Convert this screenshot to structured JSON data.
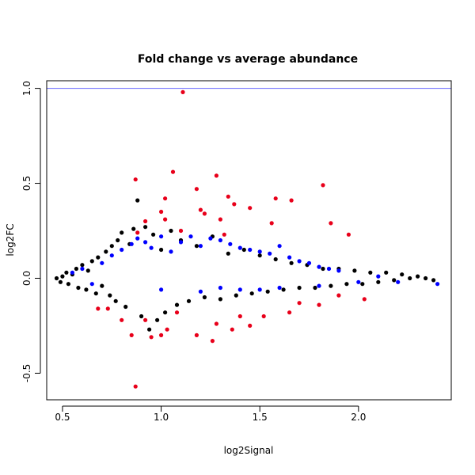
{
  "chart_data": {
    "type": "scatter",
    "title": "Fold change vs average abundance",
    "xlabel": "log2Signal",
    "ylabel": "log2FC",
    "xlim": [
      0.42,
      2.47
    ],
    "ylim": [
      -0.64,
      1.04
    ],
    "x_ticks": [
      {
        "value": 0.5,
        "label": "0.5"
      },
      {
        "value": 1.0,
        "label": "1.0"
      },
      {
        "value": 1.5,
        "label": "1.5"
      },
      {
        "value": 2.0,
        "label": "2.0"
      }
    ],
    "y_ticks": [
      {
        "value": -0.5,
        "label": "-0.5"
      },
      {
        "value": 0.0,
        "label": "0.0"
      },
      {
        "value": 0.5,
        "label": "0.5"
      },
      {
        "value": 1.0,
        "label": "1.0"
      }
    ],
    "reference_line": {
      "y": 1.0,
      "color": "#6666ff"
    },
    "grid": false,
    "legend": "none",
    "series": [
      {
        "color": "#000000",
        "points": [
          [
            0.47,
            0.0
          ],
          [
            0.49,
            -0.02
          ],
          [
            0.5,
            0.01
          ],
          [
            0.52,
            0.03
          ],
          [
            0.53,
            -0.03
          ],
          [
            0.55,
            0.02
          ],
          [
            0.57,
            0.05
          ],
          [
            0.58,
            -0.05
          ],
          [
            0.6,
            0.07
          ],
          [
            0.62,
            -0.06
          ],
          [
            0.63,
            0.04
          ],
          [
            0.65,
            0.09
          ],
          [
            0.67,
            -0.08
          ],
          [
            0.68,
            0.11
          ],
          [
            0.7,
            -0.04
          ],
          [
            0.72,
            0.14
          ],
          [
            0.74,
            -0.09
          ],
          [
            0.75,
            0.17
          ],
          [
            0.77,
            -0.12
          ],
          [
            0.78,
            0.2
          ],
          [
            0.8,
            0.24
          ],
          [
            0.82,
            -0.15
          ],
          [
            0.84,
            0.18
          ],
          [
            0.86,
            0.26
          ],
          [
            0.88,
            0.41
          ],
          [
            0.9,
            -0.2
          ],
          [
            0.92,
            0.27
          ],
          [
            0.94,
            -0.27
          ],
          [
            0.96,
            0.23
          ],
          [
            0.98,
            -0.22
          ],
          [
            1.0,
            0.15
          ],
          [
            1.02,
            -0.18
          ],
          [
            1.05,
            0.25
          ],
          [
            1.08,
            -0.14
          ],
          [
            1.1,
            0.2
          ],
          [
            1.14,
            -0.12
          ],
          [
            1.18,
            0.17
          ],
          [
            1.22,
            -0.1
          ],
          [
            1.26,
            0.22
          ],
          [
            1.3,
            -0.11
          ],
          [
            1.34,
            0.13
          ],
          [
            1.38,
            -0.09
          ],
          [
            1.42,
            0.15
          ],
          [
            1.46,
            -0.08
          ],
          [
            1.5,
            0.12
          ],
          [
            1.54,
            -0.07
          ],
          [
            1.58,
            0.1
          ],
          [
            1.62,
            -0.06
          ],
          [
            1.66,
            0.08
          ],
          [
            1.7,
            -0.05
          ],
          [
            1.74,
            0.07
          ],
          [
            1.78,
            -0.05
          ],
          [
            1.82,
            0.05
          ],
          [
            1.86,
            -0.04
          ],
          [
            1.9,
            0.05
          ],
          [
            1.94,
            -0.03
          ],
          [
            1.98,
            0.04
          ],
          [
            2.02,
            -0.03
          ],
          [
            2.06,
            0.03
          ],
          [
            2.1,
            -0.02
          ],
          [
            2.14,
            0.03
          ],
          [
            2.18,
            -0.01
          ],
          [
            2.22,
            0.02
          ],
          [
            2.26,
            0.0
          ],
          [
            2.3,
            0.01
          ],
          [
            2.34,
            0.0
          ],
          [
            2.38,
            -0.01
          ]
        ]
      },
      {
        "color": "#0000ff",
        "points": [
          [
            0.55,
            0.03
          ],
          [
            0.6,
            0.05
          ],
          [
            0.65,
            -0.03
          ],
          [
            0.7,
            0.08
          ],
          [
            0.75,
            0.12
          ],
          [
            0.8,
            0.15
          ],
          [
            0.85,
            0.18
          ],
          [
            0.88,
            0.21
          ],
          [
            0.92,
            0.19
          ],
          [
            0.95,
            0.16
          ],
          [
            1.0,
            0.22
          ],
          [
            1.05,
            0.14
          ],
          [
            1.1,
            0.19
          ],
          [
            1.15,
            0.22
          ],
          [
            1.2,
            0.17
          ],
          [
            1.25,
            0.21
          ],
          [
            1.3,
            0.2
          ],
          [
            1.35,
            0.18
          ],
          [
            1.4,
            0.16
          ],
          [
            1.45,
            0.15
          ],
          [
            1.5,
            0.14
          ],
          [
            1.55,
            0.13
          ],
          [
            1.6,
            0.17
          ],
          [
            1.65,
            0.11
          ],
          [
            1.7,
            0.09
          ],
          [
            1.75,
            0.08
          ],
          [
            1.8,
            0.06
          ],
          [
            1.85,
            0.05
          ],
          [
            1.9,
            0.04
          ],
          [
            2.0,
            -0.02
          ],
          [
            2.1,
            0.01
          ],
          [
            2.2,
            -0.02
          ],
          [
            2.4,
            -0.03
          ],
          [
            1.0,
            -0.06
          ],
          [
            1.2,
            -0.07
          ],
          [
            1.4,
            -0.06
          ],
          [
            1.6,
            -0.05
          ],
          [
            1.8,
            -0.04
          ],
          [
            1.3,
            -0.05
          ],
          [
            1.5,
            -0.06
          ]
        ]
      },
      {
        "color": "#e8001a",
        "points": [
          [
            1.11,
            0.98
          ],
          [
            1.06,
            0.56
          ],
          [
            1.28,
            0.54
          ],
          [
            0.87,
            0.52
          ],
          [
            1.18,
            0.47
          ],
          [
            1.82,
            0.49
          ],
          [
            0.87,
            -0.57
          ],
          [
            1.26,
            -0.33
          ],
          [
            1.02,
            0.42
          ],
          [
            1.34,
            0.43
          ],
          [
            1.37,
            0.39
          ],
          [
            1.58,
            0.42
          ],
          [
            1.66,
            0.41
          ],
          [
            1.45,
            0.37
          ],
          [
            1.2,
            0.36
          ],
          [
            1.0,
            0.35
          ],
          [
            1.22,
            0.34
          ],
          [
            0.92,
            0.3
          ],
          [
            1.02,
            0.31
          ],
          [
            1.3,
            0.31
          ],
          [
            1.56,
            0.29
          ],
          [
            1.86,
            0.29
          ],
          [
            0.88,
            0.24
          ],
          [
            1.1,
            0.25
          ],
          [
            1.32,
            0.23
          ],
          [
            1.95,
            0.23
          ],
          [
            0.85,
            -0.3
          ],
          [
            0.95,
            -0.31
          ],
          [
            1.0,
            -0.3
          ],
          [
            1.18,
            -0.3
          ],
          [
            1.36,
            -0.27
          ],
          [
            1.45,
            -0.25
          ],
          [
            1.52,
            -0.2
          ],
          [
            1.65,
            -0.18
          ],
          [
            1.8,
            -0.14
          ],
          [
            0.8,
            -0.22
          ],
          [
            0.68,
            -0.16
          ],
          [
            0.73,
            -0.16
          ],
          [
            1.03,
            -0.27
          ],
          [
            1.28,
            -0.24
          ],
          [
            2.03,
            -0.11
          ],
          [
            1.7,
            -0.13
          ],
          [
            1.9,
            -0.09
          ],
          [
            1.08,
            -0.18
          ],
          [
            1.4,
            -0.2
          ],
          [
            0.92,
            -0.22
          ]
        ]
      }
    ]
  }
}
